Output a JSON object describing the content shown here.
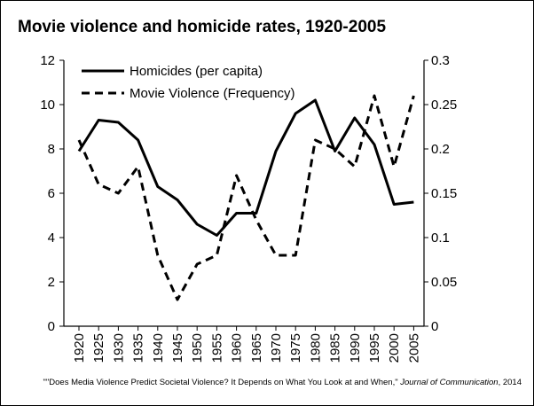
{
  "chart_data": {
    "type": "line",
    "title": "Movie violence and homicide rates, 1920-2005",
    "x": [
      "1920",
      "1925",
      "1930",
      "1935",
      "1940",
      "1945",
      "1950",
      "1955",
      "1960",
      "1965",
      "1970",
      "1975",
      "1980",
      "1985",
      "1990",
      "1995",
      "2000",
      "2005"
    ],
    "series": [
      {
        "name": "Homicides (per capita)",
        "axis": "left",
        "style": "solid",
        "values": [
          7.9,
          9.3,
          9.2,
          8.4,
          6.3,
          5.7,
          4.6,
          4.1,
          5.1,
          5.1,
          7.9,
          9.6,
          10.2,
          7.9,
          9.4,
          8.2,
          5.5,
          5.6
        ]
      },
      {
        "name": "Movie Violence (Frequency)",
        "axis": "right",
        "style": "dashed",
        "values": [
          0.21,
          0.16,
          0.15,
          0.18,
          0.08,
          0.03,
          0.07,
          0.08,
          0.17,
          0.12,
          0.08,
          0.08,
          0.21,
          0.2,
          0.18,
          0.26,
          0.18,
          0.26
        ]
      }
    ],
    "yleft": {
      "min": 0,
      "max": 12,
      "ticks": [
        "0",
        "2",
        "4",
        "6",
        "8",
        "10",
        "12"
      ]
    },
    "yright": {
      "min": 0,
      "max": 0.3,
      "ticks": [
        "0",
        "0.05",
        "0.1",
        "0.15",
        "0.2",
        "0.25",
        "0.3"
      ]
    },
    "grid": false,
    "legend": "top-left",
    "source": {
      "text": "\"\"Does Media Violence Predict Societal Violence? It Depends on What You Look at and When,\"",
      "journal": "Journal of Communication",
      "year": ", 2014"
    },
    "colors": {
      "line": "#000000",
      "axis": "#000000"
    }
  }
}
